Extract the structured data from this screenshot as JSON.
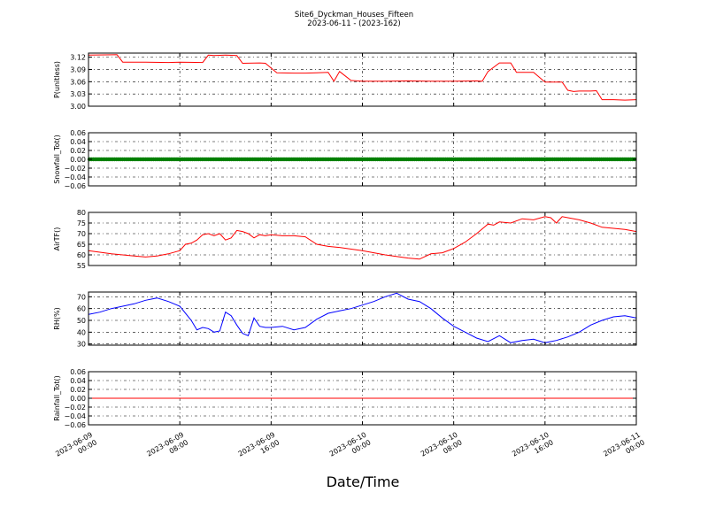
{
  "figure": {
    "title_line1": "Site6_Dyckman_Houses_Fifteen",
    "title_line2": "2023-06-11 - (2023-162)",
    "xlabel": "Date/Time"
  },
  "chart_data": [
    {
      "type": "line",
      "ylabel": "P(unitless)",
      "ylim": [
        3.0,
        3.13
      ],
      "yticks": [
        "3.00",
        "3.03",
        "3.06",
        "3.09",
        "3.12"
      ],
      "ytick_values": [
        3.0,
        3.03,
        3.06,
        3.09,
        3.12
      ],
      "color": "#ff0000",
      "grid": true,
      "x_hours": [
        0,
        2.5,
        3,
        3.5,
        5,
        7,
        8,
        10,
        10.5,
        11,
        12,
        13,
        13.5,
        15,
        15.5,
        16.5,
        18,
        19,
        20,
        21,
        21.5,
        22,
        23,
        23.5,
        24,
        26,
        28,
        30,
        32,
        34,
        34.5,
        35,
        36,
        37,
        37.5,
        39,
        40,
        41.5,
        42,
        42.5,
        43,
        44,
        44.5,
        45,
        46,
        47,
        48
      ],
      "values": [
        3.125,
        3.126,
        3.108,
        3.108,
        3.108,
        3.107,
        3.108,
        3.107,
        3.125,
        3.124,
        3.125,
        3.124,
        3.105,
        3.106,
        3.105,
        3.082,
        3.081,
        3.081,
        3.082,
        3.083,
        3.061,
        3.085,
        3.063,
        3.062,
        3.061,
        3.061,
        3.062,
        3.061,
        3.061,
        3.062,
        3.061,
        3.085,
        3.106,
        3.106,
        3.083,
        3.083,
        3.059,
        3.059,
        3.039,
        3.036,
        3.037,
        3.037,
        3.038,
        3.016,
        3.016,
        3.015,
        3.016
      ]
    },
    {
      "type": "scatter",
      "ylabel": "Snowfall_Tot()",
      "ylim": [
        -0.06,
        0.06
      ],
      "yticks": [
        "0.06",
        "0.04",
        "0.02",
        "0.00",
        "−0.02",
        "−0.04",
        "−0.06"
      ],
      "ytick_values": [
        0.06,
        0.04,
        0.02,
        0.0,
        -0.02,
        -0.04,
        -0.06
      ],
      "color": "#007f00",
      "grid": true,
      "constant_value": 0.0
    },
    {
      "type": "line",
      "ylabel": "AirTF()",
      "ylim": [
        55,
        80
      ],
      "yticks": [
        "80",
        "75",
        "70",
        "65",
        "60",
        "55"
      ],
      "ytick_values": [
        80,
        75,
        70,
        65,
        60,
        55
      ],
      "color": "#ff0000",
      "grid": true,
      "x_hours": [
        0,
        2,
        4,
        5,
        6,
        7,
        8,
        8.5,
        9,
        9.5,
        10,
        10.5,
        11,
        11.5,
        12,
        12.5,
        13,
        13.5,
        14,
        14.5,
        15,
        15.5,
        16,
        17,
        18,
        19,
        20,
        21,
        22,
        24,
        26,
        28,
        29,
        30,
        31,
        32,
        33,
        34,
        35,
        35.5,
        36,
        37,
        38,
        39,
        40,
        40.5,
        41,
        41.5,
        42,
        43,
        44,
        45,
        46,
        47,
        48
      ],
      "values": [
        62,
        60.5,
        59.5,
        59,
        59.5,
        60.5,
        62,
        65,
        65.5,
        67,
        69.5,
        70,
        69,
        70,
        67,
        68,
        71.5,
        71,
        70,
        68,
        69.5,
        69,
        69.5,
        69,
        69,
        68.5,
        65,
        64,
        63.5,
        62,
        60,
        58.5,
        58,
        60.5,
        61,
        63,
        66,
        70,
        74.5,
        74,
        75.5,
        75,
        77,
        76.5,
        78,
        77.5,
        75,
        78,
        77.5,
        76.5,
        75,
        73,
        72.5,
        72,
        71
      ]
    },
    {
      "type": "line",
      "ylabel": "RH(%)",
      "ylim": [
        29,
        74
      ],
      "yticks": [
        "70",
        "60",
        "50",
        "40",
        "30"
      ],
      "ytick_values": [
        70,
        60,
        50,
        40,
        30
      ],
      "color": "#0000ff",
      "grid": true,
      "x_hours": [
        0,
        1,
        2,
        3,
        4,
        5,
        6,
        7,
        8,
        9,
        9.5,
        10,
        10.5,
        11,
        11.5,
        12,
        12.5,
        13,
        13.5,
        14,
        14.5,
        15,
        15.5,
        16,
        17,
        18,
        19,
        20,
        21,
        22,
        23,
        24,
        25,
        26,
        27,
        28,
        29,
        30,
        31,
        32,
        33,
        34,
        35,
        36,
        37,
        38,
        39,
        40,
        41,
        42,
        43,
        44,
        45,
        46,
        47,
        48
      ],
      "values": [
        55,
        57,
        60,
        62,
        64,
        67,
        69,
        66,
        62,
        50,
        42,
        44,
        43,
        40,
        41,
        57,
        54,
        46,
        39,
        37,
        52,
        45,
        44,
        44,
        45,
        42,
        44,
        51,
        56,
        58,
        60,
        63,
        66,
        70,
        73,
        68,
        66,
        60,
        52,
        45,
        40,
        35,
        32,
        37,
        31,
        33,
        34,
        31,
        33,
        36,
        40,
        46,
        50,
        53,
        54,
        52
      ]
    },
    {
      "type": "line",
      "ylabel": "Rainfall_Tot()",
      "ylim": [
        -0.06,
        0.06
      ],
      "yticks": [
        "0.06",
        "0.04",
        "0.02",
        "0.00",
        "−0.02",
        "−0.04",
        "−0.06"
      ],
      "ytick_values": [
        0.06,
        0.04,
        0.02,
        0.0,
        -0.02,
        -0.04,
        -0.06
      ],
      "color": "#ff0000",
      "grid": true,
      "constant_value": 0.0
    }
  ],
  "x_axis": {
    "range_hours": [
      0,
      48
    ],
    "tick_hours": [
      0,
      8,
      16,
      24,
      32,
      40,
      48
    ],
    "tick_labels": [
      [
        "2023-06-09",
        "00:00"
      ],
      [
        "2023-06-09",
        "08:00"
      ],
      [
        "2023-06-09",
        "16:00"
      ],
      [
        "2023-06-10",
        "00:00"
      ],
      [
        "2023-06-10",
        "08:00"
      ],
      [
        "2023-06-10",
        "16:00"
      ],
      [
        "2023-06-11",
        "00:00"
      ]
    ]
  }
}
